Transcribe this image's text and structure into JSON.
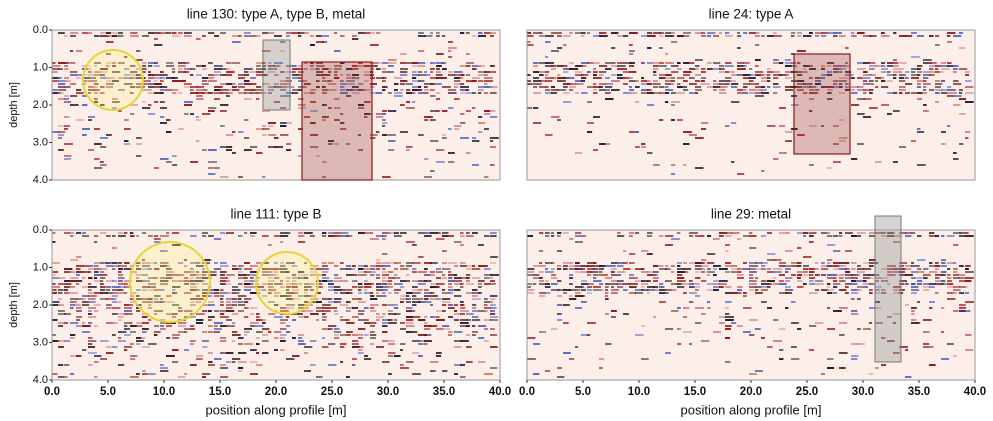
{
  "chart_data": [
    {
      "type": "radargram",
      "title": "line 130: type A, type B, metal",
      "ylabel": "depth [m]",
      "xlim": [
        0,
        40
      ],
      "ylim": [
        0,
        4
      ],
      "yaxis_inverted": true,
      "yticks": [
        {
          "value": 0,
          "label": "0.0"
        },
        {
          "value": 1,
          "label": "1.0"
        },
        {
          "value": 2,
          "label": "2.0"
        },
        {
          "value": 3,
          "label": "3.0"
        },
        {
          "value": 4,
          "label": "4.0"
        }
      ]
    },
    {
      "type": "radargram",
      "title": "line 24: type A",
      "xlim": [
        0,
        40
      ],
      "ylim": [
        0,
        4
      ],
      "yaxis_inverted": true
    },
    {
      "type": "radargram",
      "title": "line 111: type B",
      "ylabel": "depth [m]",
      "xlabel": "position along profile [m]",
      "xlim": [
        0,
        40
      ],
      "ylim": [
        0,
        4
      ],
      "yaxis_inverted": true,
      "yticks": [
        {
          "value": 0,
          "label": "0.0"
        },
        {
          "value": 1,
          "label": "1.0"
        },
        {
          "value": 2,
          "label": "2.0"
        },
        {
          "value": 3,
          "label": "3.0"
        },
        {
          "value": 4,
          "label": "4.0"
        }
      ],
      "xticks": [
        {
          "value": 0,
          "label": "0.0"
        },
        {
          "value": 5,
          "label": "5.0"
        },
        {
          "value": 10,
          "label": "10.0"
        },
        {
          "value": 15,
          "label": "15.0"
        },
        {
          "value": 20,
          "label": "20.0"
        },
        {
          "value": 25,
          "label": "25.0"
        },
        {
          "value": 30,
          "label": "30.0"
        },
        {
          "value": 35,
          "label": "35.0"
        },
        {
          "value": 40,
          "label": "40.0"
        }
      ]
    },
    {
      "type": "radargram",
      "title": "line 29: metal",
      "xlabel": "position along profile [m]",
      "xlim": [
        0,
        40
      ],
      "ylim": [
        0,
        4
      ],
      "yaxis_inverted": true,
      "xticks": [
        {
          "value": 0,
          "label": "0.0"
        },
        {
          "value": 5,
          "label": "5.0"
        },
        {
          "value": 10,
          "label": "10.0"
        },
        {
          "value": 15,
          "label": "15.0"
        },
        {
          "value": 20,
          "label": "20.0"
        },
        {
          "value": 25,
          "label": "25.0"
        },
        {
          "value": 30,
          "label": "30.0"
        },
        {
          "value": 35,
          "label": "35.0"
        },
        {
          "value": 40,
          "label": "40.0"
        }
      ]
    }
  ]
}
